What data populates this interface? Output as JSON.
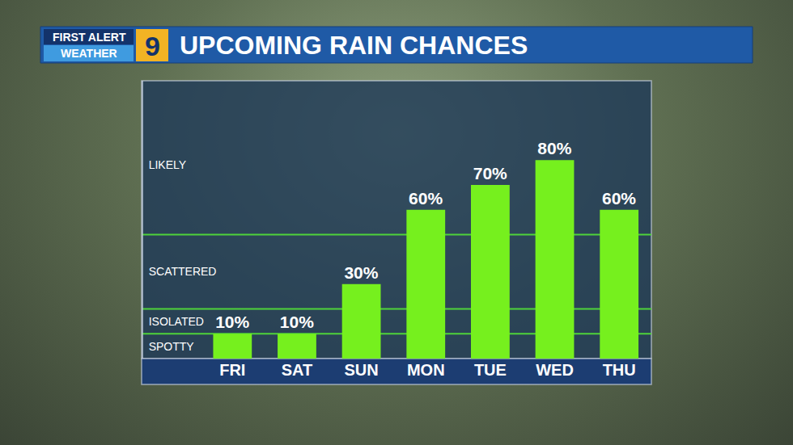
{
  "chart_data": {
    "type": "bar",
    "title": "UPCOMING RAIN CHANCES",
    "logo": [
      "FIRST ALERT",
      "9",
      "WEATHER"
    ],
    "categories": [
      "FRI",
      "SAT",
      "SUN",
      "MON",
      "TUE",
      "WED",
      "THU"
    ],
    "values": [
      10,
      10,
      30,
      60,
      70,
      80,
      60
    ],
    "value_labels": [
      "10%",
      "10%",
      "30%",
      "60%",
      "70%",
      "80%",
      "60%"
    ],
    "data_labels": true,
    "color": "#76f01e",
    "ylim": [
      0,
      112
    ],
    "yticks": [
      {
        "value": 5,
        "label": "SPOTTY"
      },
      {
        "value": 15,
        "label": "ISOLATED"
      },
      {
        "value": 35,
        "label": "SCATTERED"
      },
      {
        "value": 78,
        "label": "LIKELY"
      }
    ],
    "band_lines": [
      10,
      20,
      50
    ],
    "grid": false
  }
}
